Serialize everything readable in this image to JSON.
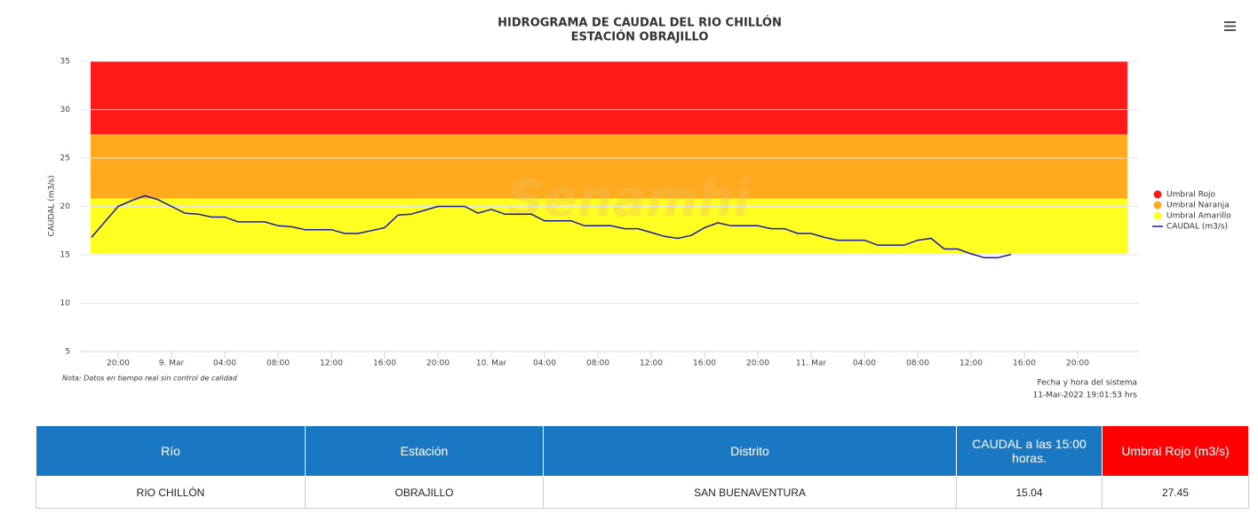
{
  "chart_data": {
    "type": "line",
    "title": "HIDROGRAMA DE CAUDAL DEL RIO CHILLÓN",
    "subtitle": "ESTACIÓN OBRAJILLO",
    "y_label": "CAUDAL (m3/s)",
    "note": "Nota: Datos en tiempo real sin control de calidad",
    "credits": [
      "Fecha y hora del sistema",
      "11-Mar-2022 19:01:53 hrs"
    ],
    "watermark": "Senamhi",
    "legend": "right",
    "grid": true,
    "xlim": [
      "2022-03-08T17:08",
      "2022-03-12T00:36"
    ],
    "xticks": [
      {
        "value": "2022-03-08T20:00",
        "label": "20:00"
      },
      {
        "value": "2022-03-09T00:00",
        "label": "9. Mar"
      },
      {
        "value": "2022-03-09T04:00",
        "label": "04:00"
      },
      {
        "value": "2022-03-09T08:00",
        "label": "08:00"
      },
      {
        "value": "2022-03-09T12:00",
        "label": "12:00"
      },
      {
        "value": "2022-03-09T16:00",
        "label": "16:00"
      },
      {
        "value": "2022-03-09T20:00",
        "label": "20:00"
      },
      {
        "value": "2022-03-10T00:00",
        "label": "10. Mar"
      },
      {
        "value": "2022-03-10T04:00",
        "label": "04:00"
      },
      {
        "value": "2022-03-10T08:00",
        "label": "08:00"
      },
      {
        "value": "2022-03-10T12:00",
        "label": "12:00"
      },
      {
        "value": "2022-03-10T16:00",
        "label": "16:00"
      },
      {
        "value": "2022-03-10T20:00",
        "label": "20:00"
      },
      {
        "value": "2022-03-11T00:00",
        "label": "11. Mar"
      },
      {
        "value": "2022-03-11T04:00",
        "label": "04:00"
      },
      {
        "value": "2022-03-11T08:00",
        "label": "08:00"
      },
      {
        "value": "2022-03-11T12:00",
        "label": "12:00"
      },
      {
        "value": "2022-03-11T16:00",
        "label": "16:00"
      },
      {
        "value": "2022-03-11T20:00",
        "label": "20:00"
      }
    ],
    "ylim": [
      5,
      35
    ],
    "yticks": [
      5,
      10,
      15,
      20,
      25,
      30,
      35
    ],
    "band_x": [
      "2022-03-08T17:56",
      "2022-03-11T23:44"
    ],
    "bands": [
      {
        "name": "Umbral Rojo",
        "color": "#ff1a1a",
        "from": 27.45,
        "to": 35
      },
      {
        "name": "Umbral Naranja",
        "color": "#ffaa1f",
        "from": 20.8,
        "to": 27.45
      },
      {
        "name": "Umbral Amarillo",
        "color": "#ffff22",
        "from": 15.1,
        "to": 20.8
      }
    ],
    "series": [
      {
        "name": "CAUDAL (m3/s)",
        "color": "#1a1a9e",
        "x": [
          "2022-03-08T18:00",
          "2022-03-08T19:00",
          "2022-03-08T20:00",
          "2022-03-08T21:00",
          "2022-03-08T22:00",
          "2022-03-08T23:00",
          "2022-03-09T00:00",
          "2022-03-09T01:00",
          "2022-03-09T02:00",
          "2022-03-09T03:00",
          "2022-03-09T04:00",
          "2022-03-09T05:00",
          "2022-03-09T06:00",
          "2022-03-09T07:00",
          "2022-03-09T08:00",
          "2022-03-09T09:00",
          "2022-03-09T10:00",
          "2022-03-09T11:00",
          "2022-03-09T12:00",
          "2022-03-09T13:00",
          "2022-03-09T14:00",
          "2022-03-09T15:00",
          "2022-03-09T16:00",
          "2022-03-09T17:00",
          "2022-03-09T18:00",
          "2022-03-09T19:00",
          "2022-03-09T20:00",
          "2022-03-09T21:00",
          "2022-03-09T22:00",
          "2022-03-09T23:00",
          "2022-03-10T00:00",
          "2022-03-10T01:00",
          "2022-03-10T02:00",
          "2022-03-10T03:00",
          "2022-03-10T04:00",
          "2022-03-10T05:00",
          "2022-03-10T06:00",
          "2022-03-10T07:00",
          "2022-03-10T08:00",
          "2022-03-10T09:00",
          "2022-03-10T10:00",
          "2022-03-10T11:00",
          "2022-03-10T12:00",
          "2022-03-10T13:00",
          "2022-03-10T14:00",
          "2022-03-10T15:00",
          "2022-03-10T16:00",
          "2022-03-10T17:00",
          "2022-03-10T18:00",
          "2022-03-10T19:00",
          "2022-03-10T20:00",
          "2022-03-10T21:00",
          "2022-03-10T22:00",
          "2022-03-10T23:00",
          "2022-03-11T00:00",
          "2022-03-11T01:00",
          "2022-03-11T02:00",
          "2022-03-11T03:00",
          "2022-03-11T04:00",
          "2022-03-11T05:00",
          "2022-03-11T06:00",
          "2022-03-11T07:00",
          "2022-03-11T08:00",
          "2022-03-11T09:00",
          "2022-03-11T10:00",
          "2022-03-11T11:00",
          "2022-03-11T12:00",
          "2022-03-11T13:00",
          "2022-03-11T14:00",
          "2022-03-11T15:00"
        ],
        "values": [
          16.8,
          18.4,
          20.0,
          20.6,
          21.1,
          20.7,
          20.0,
          19.3,
          19.2,
          18.9,
          18.9,
          18.4,
          18.4,
          18.4,
          18.0,
          17.9,
          17.6,
          17.6,
          17.6,
          17.2,
          17.2,
          17.5,
          17.8,
          19.1,
          19.2,
          19.6,
          20.0,
          20.0,
          20.0,
          19.3,
          19.7,
          19.2,
          19.2,
          19.2,
          18.5,
          18.5,
          18.5,
          18.0,
          18.0,
          18.0,
          17.7,
          17.7,
          17.3,
          16.9,
          16.7,
          17.0,
          17.8,
          18.3,
          18.0,
          18.0,
          18.0,
          17.7,
          17.7,
          17.2,
          17.2,
          16.8,
          16.5,
          16.5,
          16.5,
          16.0,
          16.0,
          16.0,
          16.5,
          16.7,
          15.6,
          15.6,
          15.1,
          14.7,
          14.7,
          15.04
        ]
      }
    ]
  },
  "table": {
    "headers": [
      "Río",
      "Estación",
      "Distrito",
      "CAUDAL a las 15:00 horas.",
      "Umbral Rojo (m3/s)"
    ],
    "rows": [
      [
        "RIO CHILLÓN",
        "OBRAJILLO",
        "SAN BUENAVENTURA",
        15.04,
        27.45
      ]
    ]
  }
}
